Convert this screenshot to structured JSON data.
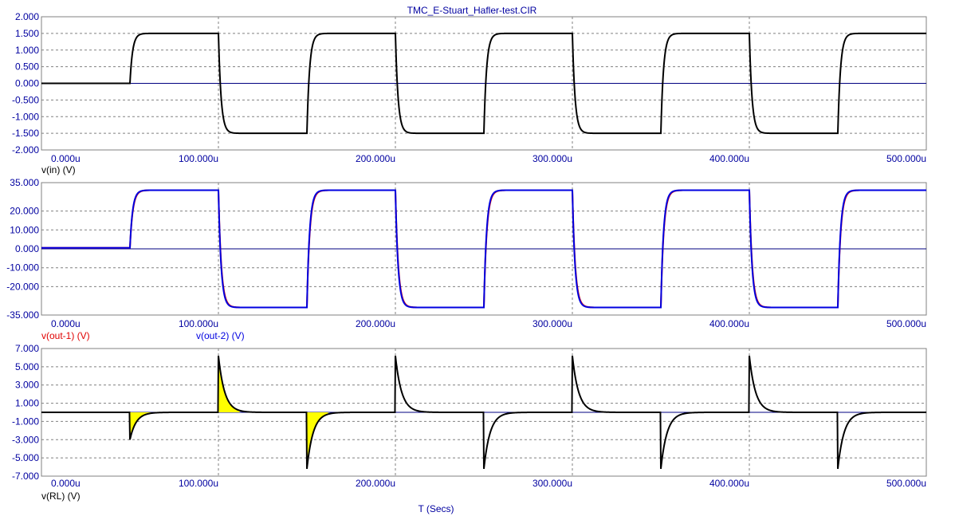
{
  "title": "TMC_E-Stuart_Hafler-test.CIR",
  "colors": {
    "title": "#0000a0",
    "tick_label": "#0000a0",
    "grid": "#808080",
    "frame": "#808080",
    "axis_zero": "#000080",
    "black_trace": "#000000",
    "red_trace": "#e00000",
    "blue_trace": "#0000e0",
    "fill_yellow": "#ffff00"
  },
  "chart_data": [
    {
      "type": "line",
      "xlabel": "T (Secs)",
      "x_ticks": [
        "0.000u",
        "100.000u",
        "200.000u",
        "300.000u",
        "400.000u",
        "500.000u"
      ],
      "xlim": [
        0,
        500
      ],
      "x_unit": "us",
      "ylim": [
        -2,
        2
      ],
      "y_ticks": [
        "2.000",
        "1.500",
        "1.000",
        "0.500",
        "0.000",
        "-0.500",
        "-1.000",
        "-1.500",
        "-2.000"
      ],
      "series": [
        {
          "name": "v(in) (V)",
          "color": "#000000",
          "wave": "square",
          "start_us": 50,
          "period_us": 100,
          "amplitude": 1.5,
          "initial": 0,
          "tau_us": 1.5
        }
      ]
    },
    {
      "type": "line",
      "xlabel": "T (Secs)",
      "x_ticks": [
        "0.000u",
        "100.000u",
        "200.000u",
        "300.000u",
        "400.000u",
        "500.000u"
      ],
      "xlim": [
        0,
        500
      ],
      "x_unit": "us",
      "ylim": [
        -35,
        35
      ],
      "y_ticks": [
        "35.000",
        "20.000",
        "10.000",
        "0.000",
        "-10.000",
        "-20.000",
        "-35.000"
      ],
      "series": [
        {
          "name": "v(out-1) (V)",
          "color": "#e00000",
          "wave": "square",
          "start_us": 50,
          "period_us": 100,
          "amplitude": 31,
          "initial": 0.5,
          "tau_us": 1.6
        },
        {
          "name": "v(out-2) (V)",
          "color": "#0000e0",
          "wave": "square",
          "start_us": 50,
          "period_us": 100,
          "amplitude": 31,
          "initial": 0.5,
          "tau_us": 1.5
        }
      ]
    },
    {
      "type": "line",
      "xlabel": "T (Secs)",
      "x_ticks": [
        "0.000u",
        "100.000u",
        "200.000u",
        "300.000u",
        "400.000u",
        "500.000u"
      ],
      "xlim": [
        0,
        500
      ],
      "x_unit": "us",
      "ylim": [
        -7,
        7
      ],
      "y_ticks": [
        "7.000",
        "5.000",
        "3.000",
        "1.000",
        "-1.000",
        "-3.000",
        "-5.000",
        "-7.000"
      ],
      "series": [
        {
          "name": "v(RL) (V)",
          "color": "#000000",
          "wave": "spikes",
          "spikes": [
            {
              "t_us": 50,
              "peak": -3.0,
              "filled": true
            },
            {
              "t_us": 100,
              "peak": 6.2,
              "filled": true
            },
            {
              "t_us": 150,
              "peak": -6.2,
              "filled": true
            },
            {
              "t_us": 200,
              "peak": 6.2,
              "filled": false
            },
            {
              "t_us": 250,
              "peak": -6.2,
              "filled": false
            },
            {
              "t_us": 300,
              "peak": 6.2,
              "filled": false
            },
            {
              "t_us": 350,
              "peak": -6.2,
              "filled": false
            },
            {
              "t_us": 400,
              "peak": 6.2,
              "filled": false
            },
            {
              "t_us": 450,
              "peak": -6.2,
              "filled": false
            }
          ],
          "tau_us": 3.5
        }
      ]
    }
  ]
}
